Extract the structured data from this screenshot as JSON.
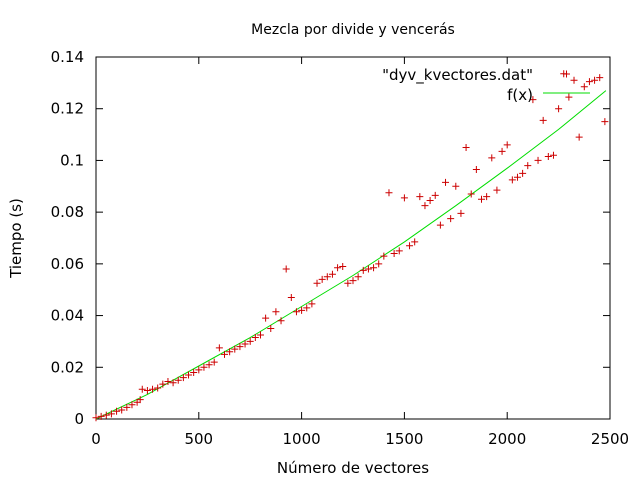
{
  "chart_data": {
    "type": "scatter",
    "title": "Mezcla por divide y vencerás",
    "xlabel": "Número de vectores",
    "ylabel": "Tiempo (s)",
    "xlim": [
      0,
      2500
    ],
    "ylim": [
      0,
      0.14
    ],
    "xticks": [
      0,
      500,
      1000,
      1500,
      2000,
      2500
    ],
    "yticks": [
      "0",
      "0.02",
      "0.04",
      "0.06",
      "0.08",
      "0.1",
      "0.12",
      "0.14"
    ],
    "ytick_values": [
      0,
      0.02,
      0.04,
      0.06,
      0.08,
      0.1,
      0.12,
      0.14
    ],
    "grid": false,
    "legend_position": "top-right",
    "series": [
      {
        "name": "\"dyv_kvectores.dat\"",
        "style": "points",
        "marker": "+",
        "color": "#cc0000",
        "points": [
          [
            0,
            0.0005
          ],
          [
            25,
            0.001
          ],
          [
            50,
            0.0015
          ],
          [
            75,
            0.002
          ],
          [
            100,
            0.003
          ],
          [
            125,
            0.0035
          ],
          [
            150,
            0.0045
          ],
          [
            175,
            0.0055
          ],
          [
            200,
            0.0065
          ],
          [
            215,
            0.0075
          ],
          [
            225,
            0.0115
          ],
          [
            250,
            0.011
          ],
          [
            275,
            0.0115
          ],
          [
            300,
            0.012
          ],
          [
            325,
            0.0135
          ],
          [
            350,
            0.0145
          ],
          [
            375,
            0.014
          ],
          [
            400,
            0.015
          ],
          [
            425,
            0.016
          ],
          [
            450,
            0.017
          ],
          [
            475,
            0.018
          ],
          [
            500,
            0.019
          ],
          [
            525,
            0.02
          ],
          [
            550,
            0.021
          ],
          [
            575,
            0.022
          ],
          [
            600,
            0.0275
          ],
          [
            625,
            0.025
          ],
          [
            650,
            0.026
          ],
          [
            675,
            0.027
          ],
          [
            700,
            0.028
          ],
          [
            725,
            0.029
          ],
          [
            750,
            0.03
          ],
          [
            775,
            0.0315
          ],
          [
            800,
            0.0325
          ],
          [
            825,
            0.039
          ],
          [
            850,
            0.035
          ],
          [
            875,
            0.0415
          ],
          [
            900,
            0.038
          ],
          [
            925,
            0.058
          ],
          [
            950,
            0.047
          ],
          [
            975,
            0.0415
          ],
          [
            1000,
            0.042
          ],
          [
            1025,
            0.043
          ],
          [
            1050,
            0.0445
          ],
          [
            1075,
            0.0525
          ],
          [
            1100,
            0.054
          ],
          [
            1125,
            0.055
          ],
          [
            1150,
            0.056
          ],
          [
            1175,
            0.0585
          ],
          [
            1200,
            0.059
          ],
          [
            1225,
            0.0525
          ],
          [
            1250,
            0.0535
          ],
          [
            1275,
            0.055
          ],
          [
            1300,
            0.0575
          ],
          [
            1325,
            0.058
          ],
          [
            1350,
            0.0585
          ],
          [
            1375,
            0.06
          ],
          [
            1400,
            0.063
          ],
          [
            1425,
            0.0875
          ],
          [
            1450,
            0.064
          ],
          [
            1475,
            0.065
          ],
          [
            1500,
            0.0855
          ],
          [
            1525,
            0.067
          ],
          [
            1550,
            0.0685
          ],
          [
            1575,
            0.086
          ],
          [
            1600,
            0.0825
          ],
          [
            1625,
            0.0845
          ],
          [
            1650,
            0.0865
          ],
          [
            1675,
            0.075
          ],
          [
            1700,
            0.0915
          ],
          [
            1725,
            0.0775
          ],
          [
            1750,
            0.09
          ],
          [
            1775,
            0.0795
          ],
          [
            1800,
            0.105
          ],
          [
            1825,
            0.087
          ],
          [
            1850,
            0.0965
          ],
          [
            1875,
            0.085
          ],
          [
            1900,
            0.086
          ],
          [
            1925,
            0.101
          ],
          [
            1950,
            0.0885
          ],
          [
            1975,
            0.1035
          ],
          [
            2000,
            0.106
          ],
          [
            2025,
            0.0925
          ],
          [
            2050,
            0.0935
          ],
          [
            2075,
            0.095
          ],
          [
            2100,
            0.098
          ],
          [
            2125,
            0.1235
          ],
          [
            2150,
            0.1
          ],
          [
            2175,
            0.1155
          ],
          [
            2200,
            0.1015
          ],
          [
            2225,
            0.102
          ],
          [
            2250,
            0.12
          ],
          [
            2275,
            0.1335
          ],
          [
            2300,
            0.1245
          ],
          [
            2325,
            0.131
          ],
          [
            2350,
            0.109
          ],
          [
            2375,
            0.1285
          ],
          [
            2400,
            0.1305
          ],
          [
            2425,
            0.131
          ],
          [
            2450,
            0.132
          ],
          [
            2475,
            0.115
          ]
        ]
      },
      {
        "name": "f(x)",
        "style": "line",
        "color": "#00dd00",
        "points": [
          [
            0,
            0
          ],
          [
            250,
            0.0095
          ],
          [
            500,
            0.0205
          ],
          [
            750,
            0.0315
          ],
          [
            1000,
            0.0435
          ],
          [
            1250,
            0.0555
          ],
          [
            1500,
            0.0685
          ],
          [
            1750,
            0.0825
          ],
          [
            2000,
            0.097
          ],
          [
            2250,
            0.112
          ],
          [
            2480,
            0.127
          ]
        ]
      }
    ]
  }
}
